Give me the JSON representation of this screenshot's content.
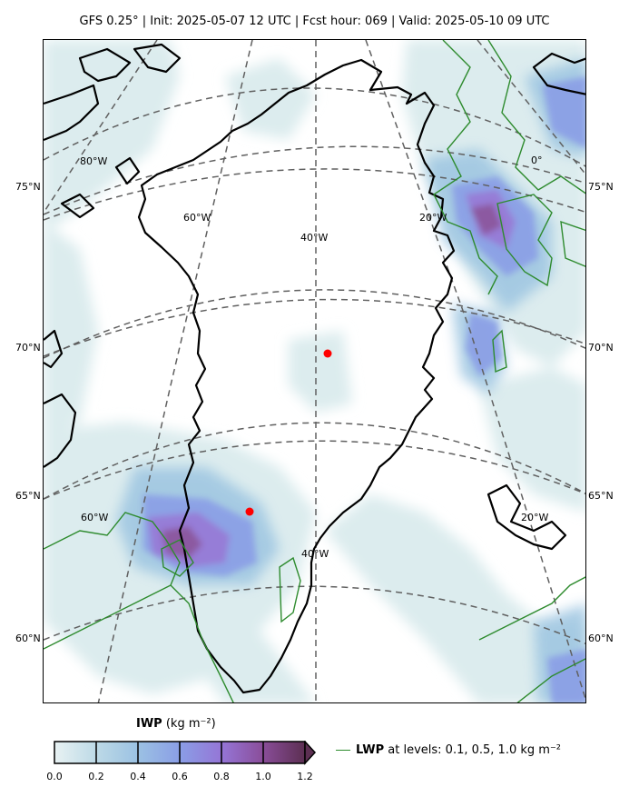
{
  "title": "GFS 0.25°  |  Init: 2025-05-07 12 UTC  |  Fcst hour: 069  |  Valid: 2025-05-10 09 UTC",
  "lat_labels": [
    "75°N",
    "70°N",
    "65°N",
    "60°N"
  ],
  "lon_labels": {
    "l80w": "80°W",
    "l60w_top": "60°W",
    "l40w_top": "40°W",
    "l20w_top": "20°W",
    "l0": "0°",
    "l60w_bot": "60°W",
    "l40w_bot": "40°W",
    "l20w_bot": "20°W"
  },
  "colorbar": {
    "var": "IWP",
    "units": "(kg m⁻²)",
    "ticks": [
      "0.0",
      "0.2",
      "0.4",
      "0.6",
      "0.8",
      "1.0",
      "1.2"
    ],
    "colors": [
      "#dcecee",
      "#9cc5e1",
      "#8a9ee6",
      "#9575d6",
      "#8a4e9a",
      "#5c2f52"
    ]
  },
  "legend": {
    "var": "LWP",
    "text": " at levels: 0.1, 0.5, 1.0  kg m⁻²",
    "color": "#2e8b2e"
  },
  "markers_color": "#ff0000"
}
